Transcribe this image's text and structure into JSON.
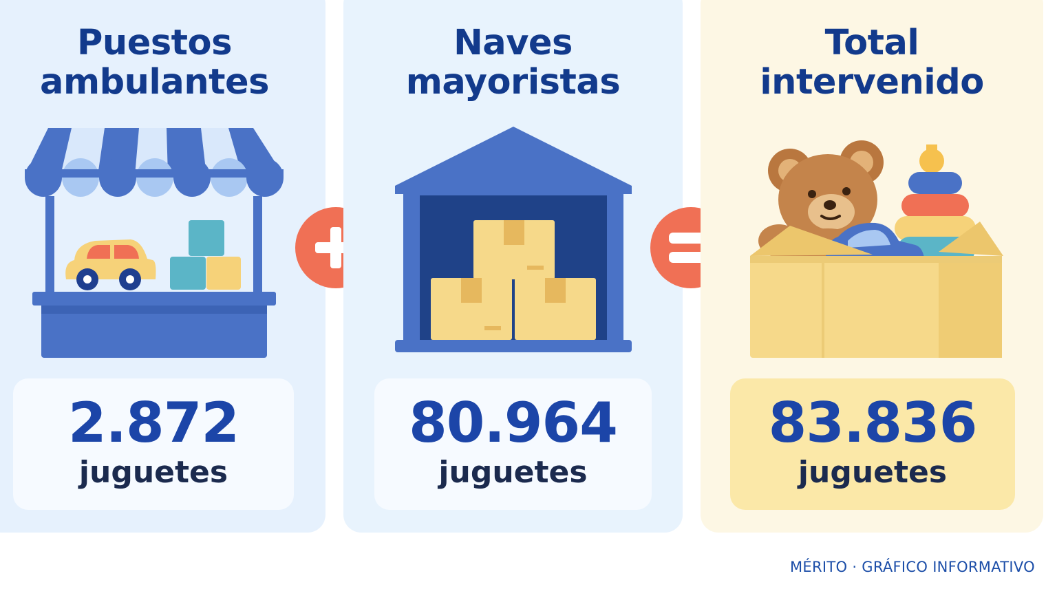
{
  "panels": [
    {
      "title_line1": "Puestos",
      "title_line2": "ambulantes",
      "value": "2.872",
      "unit": "juguetes",
      "icon": "market-stall-icon"
    },
    {
      "title_line1": "Naves",
      "title_line2": "mayoristas",
      "value": "80.964",
      "unit": "juguetes",
      "icon": "warehouse-icon"
    },
    {
      "title_line1": "Total",
      "title_line2": "intervenido",
      "value": "83.836",
      "unit": "juguetes",
      "icon": "toy-box-icon"
    }
  ],
  "operators": [
    "plus-icon",
    "equals-icon"
  ],
  "footer": "MÉRITO · GRÁFICO INFORMATIVO",
  "colors": {
    "primary_blue": "#4a72c6",
    "dark_navy": "#123a8c",
    "operator_red": "#f07055",
    "box_yellow": "#f6d98a",
    "panel_blue": "#e6f1fd",
    "panel_cream": "#fdf7e4"
  }
}
